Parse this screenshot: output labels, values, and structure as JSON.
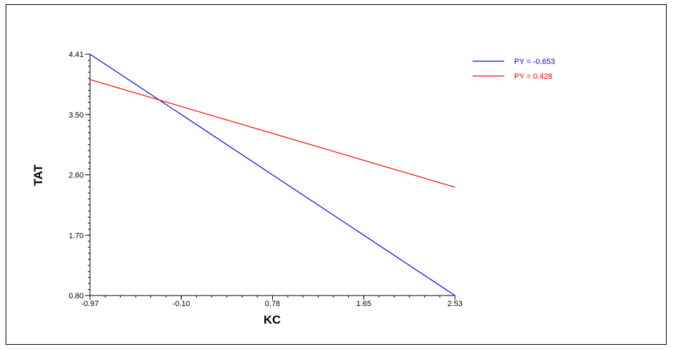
{
  "chart_data": {
    "type": "line",
    "xlabel": "KC",
    "ylabel": "TAT",
    "xlim": [
      -0.97,
      2.53
    ],
    "ylim": [
      0.8,
      4.41
    ],
    "x_ticks": [
      "-0.97",
      "-0.10",
      "0.78",
      "1.65",
      "2.53"
    ],
    "y_ticks": [
      "0.80",
      "1.70",
      "2.60",
      "3.50",
      "4.41"
    ],
    "grid": false,
    "legend_position": "top-right",
    "series": [
      {
        "name": "PY = -0.653",
        "color": "#0000ff",
        "x": [
          -0.97,
          2.53
        ],
        "y": [
          4.41,
          0.8
        ]
      },
      {
        "name": "PY = 0.428",
        "color": "#ff0000",
        "x": [
          -0.97,
          2.53
        ],
        "y": [
          4.03,
          2.42
        ]
      }
    ]
  }
}
